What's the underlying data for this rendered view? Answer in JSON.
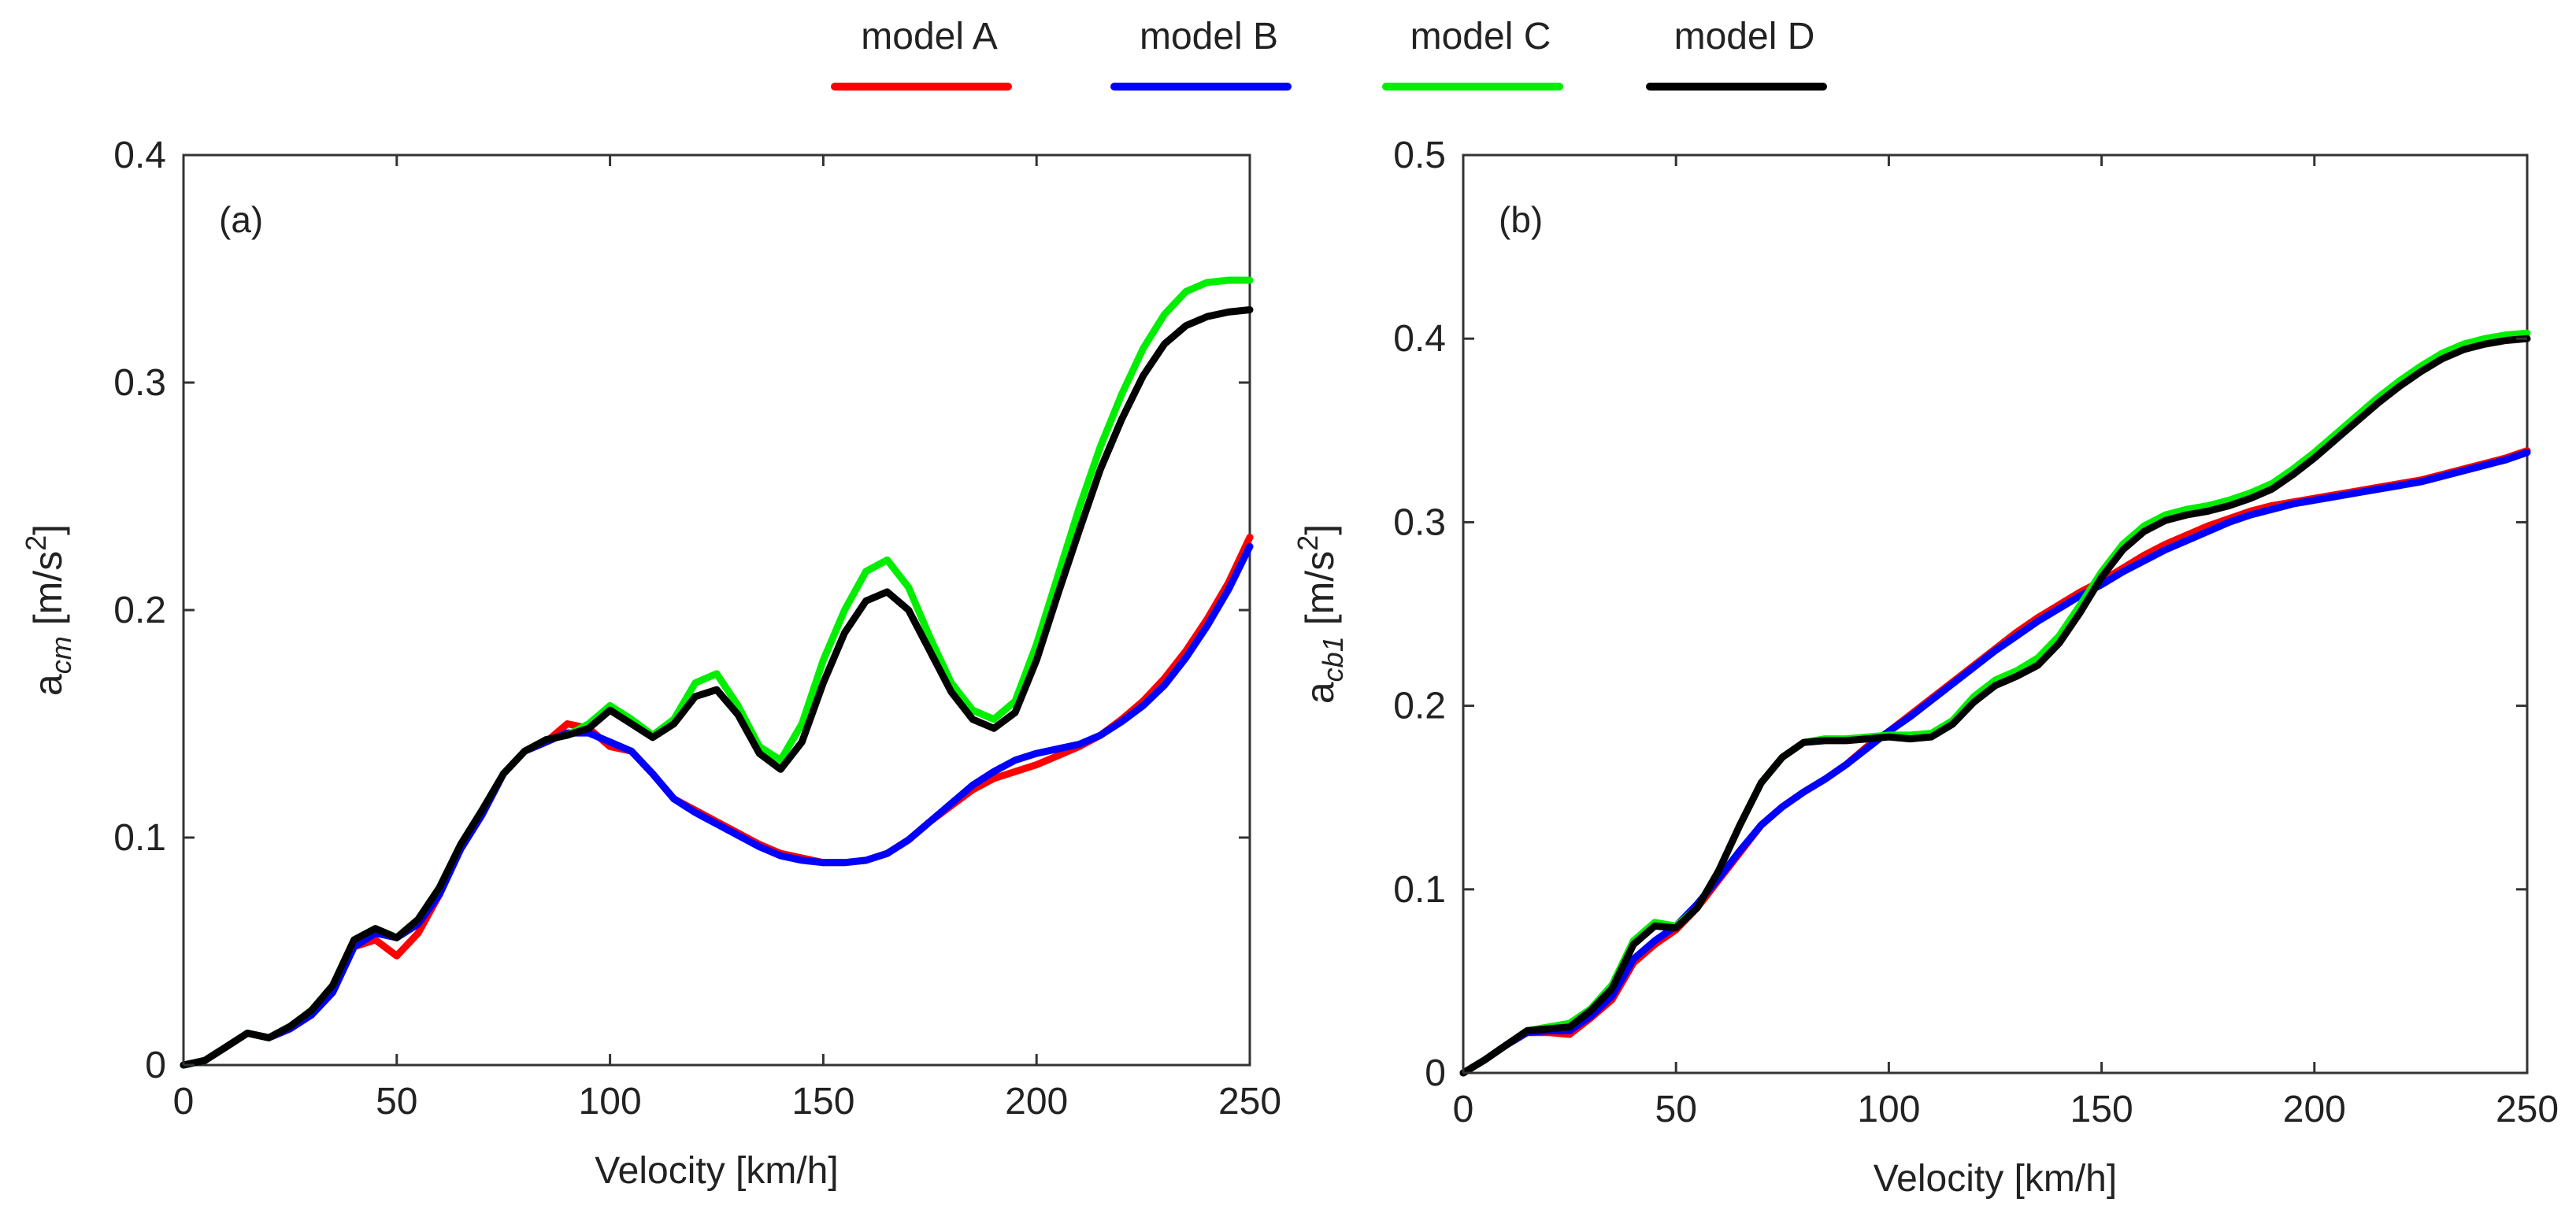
{
  "legend": [
    {
      "label": "model A",
      "color": "#ff0000"
    },
    {
      "label": "model B",
      "color": "#0000ff"
    },
    {
      "label": "model C",
      "color": "#00ee00"
    },
    {
      "label": "model D",
      "color": "#000000"
    }
  ],
  "chart_data": [
    {
      "type": "line",
      "panel_label": "(a)",
      "xlabel": "Velocity [km/h]",
      "ylabel_base": "a",
      "ylabel_sub": "cm",
      "ylabel_unit": "[m/s",
      "ylabel_sup": "2",
      "ylabel_close": "]",
      "xlim": [
        0,
        250
      ],
      "ylim": [
        0,
        0.4
      ],
      "xticks": [
        0,
        50,
        100,
        150,
        200,
        250
      ],
      "xtick_labels": [
        "0",
        "50",
        "100",
        "150",
        "200",
        "250"
      ],
      "yticks": [
        0,
        0.1,
        0.2,
        0.3,
        0.4
      ],
      "ytick_labels": [
        "0",
        "0.1",
        "0.2",
        "0.3",
        "0.4"
      ],
      "grid": false,
      "series": [
        {
          "name": "model A",
          "color": "#ff0000",
          "x": [
            0,
            5,
            10,
            15,
            20,
            25,
            30,
            35,
            40,
            45,
            50,
            55,
            60,
            65,
            70,
            75,
            80,
            85,
            90,
            95,
            100,
            105,
            110,
            115,
            120,
            125,
            130,
            135,
            140,
            145,
            150,
            155,
            160,
            165,
            170,
            175,
            180,
            185,
            190,
            195,
            200,
            205,
            210,
            215,
            220,
            225,
            230,
            235,
            240,
            245,
            250
          ],
          "y": [
            0,
            0.002,
            0.008,
            0.014,
            0.012,
            0.016,
            0.022,
            0.032,
            0.052,
            0.055,
            0.048,
            0.058,
            0.075,
            0.095,
            0.11,
            0.128,
            0.138,
            0.142,
            0.15,
            0.148,
            0.14,
            0.138,
            0.128,
            0.117,
            0.112,
            0.107,
            0.102,
            0.097,
            0.093,
            0.091,
            0.089,
            0.089,
            0.09,
            0.093,
            0.099,
            0.107,
            0.114,
            0.121,
            0.126,
            0.129,
            0.132,
            0.136,
            0.14,
            0.145,
            0.152,
            0.16,
            0.17,
            0.182,
            0.196,
            0.212,
            0.232
          ]
        },
        {
          "name": "model B",
          "color": "#0000ff",
          "x": [
            0,
            5,
            10,
            15,
            20,
            25,
            30,
            35,
            40,
            45,
            50,
            55,
            60,
            65,
            70,
            75,
            80,
            85,
            90,
            95,
            100,
            105,
            110,
            115,
            120,
            125,
            130,
            135,
            140,
            145,
            150,
            155,
            160,
            165,
            170,
            175,
            180,
            185,
            190,
            195,
            200,
            205,
            210,
            215,
            220,
            225,
            230,
            235,
            240,
            245,
            250
          ],
          "y": [
            0,
            0.002,
            0.008,
            0.014,
            0.012,
            0.016,
            0.022,
            0.032,
            0.052,
            0.058,
            0.056,
            0.062,
            0.075,
            0.095,
            0.11,
            0.128,
            0.138,
            0.142,
            0.146,
            0.146,
            0.142,
            0.138,
            0.128,
            0.117,
            0.111,
            0.106,
            0.101,
            0.096,
            0.092,
            0.09,
            0.089,
            0.089,
            0.09,
            0.093,
            0.099,
            0.107,
            0.115,
            0.123,
            0.129,
            0.134,
            0.137,
            0.139,
            0.141,
            0.145,
            0.151,
            0.158,
            0.167,
            0.179,
            0.193,
            0.209,
            0.228
          ]
        },
        {
          "name": "model C",
          "color": "#00ee00",
          "x": [
            0,
            5,
            10,
            15,
            20,
            25,
            30,
            35,
            40,
            45,
            50,
            55,
            60,
            65,
            70,
            75,
            80,
            85,
            90,
            95,
            100,
            105,
            110,
            115,
            120,
            125,
            130,
            135,
            140,
            145,
            150,
            155,
            160,
            165,
            170,
            175,
            180,
            185,
            190,
            195,
            200,
            205,
            210,
            215,
            220,
            225,
            230,
            235,
            240,
            245,
            250
          ],
          "y": [
            0,
            0.002,
            0.008,
            0.014,
            0.012,
            0.017,
            0.024,
            0.035,
            0.055,
            0.06,
            0.056,
            0.064,
            0.078,
            0.097,
            0.112,
            0.128,
            0.138,
            0.143,
            0.145,
            0.15,
            0.158,
            0.152,
            0.145,
            0.152,
            0.168,
            0.172,
            0.158,
            0.14,
            0.134,
            0.15,
            0.178,
            0.2,
            0.217,
            0.222,
            0.21,
            0.188,
            0.168,
            0.156,
            0.152,
            0.16,
            0.185,
            0.215,
            0.245,
            0.272,
            0.295,
            0.315,
            0.33,
            0.34,
            0.344,
            0.345,
            0.345
          ]
        },
        {
          "name": "model D",
          "color": "#000000",
          "x": [
            0,
            5,
            10,
            15,
            20,
            25,
            30,
            35,
            40,
            45,
            50,
            55,
            60,
            65,
            70,
            75,
            80,
            85,
            90,
            95,
            100,
            105,
            110,
            115,
            120,
            125,
            130,
            135,
            140,
            145,
            150,
            155,
            160,
            165,
            170,
            175,
            180,
            185,
            190,
            195,
            200,
            205,
            210,
            215,
            220,
            225,
            230,
            235,
            240,
            245,
            250
          ],
          "y": [
            0,
            0.002,
            0.008,
            0.014,
            0.012,
            0.017,
            0.024,
            0.035,
            0.055,
            0.06,
            0.056,
            0.064,
            0.078,
            0.097,
            0.112,
            0.128,
            0.138,
            0.143,
            0.145,
            0.148,
            0.156,
            0.15,
            0.144,
            0.15,
            0.162,
            0.165,
            0.154,
            0.137,
            0.13,
            0.142,
            0.168,
            0.19,
            0.204,
            0.208,
            0.2,
            0.182,
            0.164,
            0.152,
            0.148,
            0.155,
            0.178,
            0.207,
            0.235,
            0.262,
            0.284,
            0.303,
            0.317,
            0.325,
            0.329,
            0.331,
            0.332
          ]
        }
      ]
    },
    {
      "type": "line",
      "panel_label": "(b)",
      "xlabel": "Velocity [km/h]",
      "ylabel_base": "a",
      "ylabel_sub": "cb1",
      "ylabel_unit": "[m/s",
      "ylabel_sup": "2",
      "ylabel_close": "]",
      "xlim": [
        0,
        250
      ],
      "ylim": [
        0,
        0.5
      ],
      "xticks": [
        0,
        50,
        100,
        150,
        200,
        250
      ],
      "xtick_labels": [
        "0",
        "50",
        "100",
        "150",
        "200",
        "250"
      ],
      "yticks": [
        0,
        0.1,
        0.2,
        0.3,
        0.4,
        0.5
      ],
      "ytick_labels": [
        "0",
        "0.1",
        "0.2",
        "0.3",
        "0.4",
        "0.5"
      ],
      "grid": false,
      "series": [
        {
          "name": "model A",
          "color": "#ff0000",
          "x": [
            0,
            5,
            10,
            15,
            20,
            25,
            30,
            35,
            40,
            45,
            50,
            55,
            60,
            65,
            70,
            75,
            80,
            85,
            90,
            95,
            100,
            105,
            110,
            115,
            120,
            125,
            130,
            135,
            140,
            145,
            150,
            155,
            160,
            165,
            170,
            175,
            180,
            185,
            190,
            195,
            200,
            205,
            210,
            215,
            220,
            225,
            230,
            235,
            240,
            245,
            250
          ],
          "y": [
            0,
            0.007,
            0.015,
            0.022,
            0.022,
            0.021,
            0.03,
            0.04,
            0.06,
            0.07,
            0.078,
            0.09,
            0.105,
            0.12,
            0.135,
            0.145,
            0.153,
            0.16,
            0.168,
            0.178,
            0.186,
            0.195,
            0.204,
            0.213,
            0.222,
            0.231,
            0.24,
            0.248,
            0.255,
            0.262,
            0.268,
            0.275,
            0.282,
            0.288,
            0.293,
            0.298,
            0.302,
            0.306,
            0.309,
            0.311,
            0.313,
            0.315,
            0.317,
            0.319,
            0.321,
            0.323,
            0.326,
            0.329,
            0.332,
            0.335,
            0.339
          ]
        },
        {
          "name": "model B",
          "color": "#0000ff",
          "x": [
            0,
            5,
            10,
            15,
            20,
            25,
            30,
            35,
            40,
            45,
            50,
            55,
            60,
            65,
            70,
            75,
            80,
            85,
            90,
            95,
            100,
            105,
            110,
            115,
            120,
            125,
            130,
            135,
            140,
            145,
            150,
            155,
            160,
            165,
            170,
            175,
            180,
            185,
            190,
            195,
            200,
            205,
            210,
            215,
            220,
            225,
            230,
            235,
            240,
            245,
            250
          ],
          "y": [
            0,
            0.007,
            0.015,
            0.022,
            0.023,
            0.023,
            0.031,
            0.042,
            0.062,
            0.072,
            0.08,
            0.092,
            0.106,
            0.121,
            0.135,
            0.145,
            0.153,
            0.16,
            0.168,
            0.177,
            0.186,
            0.194,
            0.203,
            0.212,
            0.221,
            0.23,
            0.238,
            0.246,
            0.253,
            0.26,
            0.266,
            0.273,
            0.279,
            0.285,
            0.29,
            0.295,
            0.3,
            0.304,
            0.307,
            0.31,
            0.312,
            0.314,
            0.316,
            0.318,
            0.32,
            0.322,
            0.325,
            0.328,
            0.331,
            0.334,
            0.338
          ]
        },
        {
          "name": "model C",
          "color": "#00ee00",
          "x": [
            0,
            5,
            10,
            15,
            20,
            25,
            30,
            35,
            40,
            45,
            50,
            55,
            60,
            65,
            70,
            75,
            80,
            85,
            90,
            95,
            100,
            105,
            110,
            115,
            120,
            125,
            130,
            135,
            140,
            145,
            150,
            155,
            160,
            165,
            170,
            175,
            180,
            185,
            190,
            195,
            200,
            205,
            210,
            215,
            220,
            225,
            230,
            235,
            240,
            245,
            250
          ],
          "y": [
            0,
            0.007,
            0.015,
            0.023,
            0.025,
            0.027,
            0.035,
            0.048,
            0.072,
            0.082,
            0.08,
            0.09,
            0.11,
            0.135,
            0.158,
            0.172,
            0.18,
            0.182,
            0.182,
            0.183,
            0.184,
            0.184,
            0.185,
            0.192,
            0.205,
            0.214,
            0.219,
            0.226,
            0.238,
            0.255,
            0.273,
            0.288,
            0.298,
            0.304,
            0.307,
            0.309,
            0.312,
            0.316,
            0.321,
            0.329,
            0.338,
            0.348,
            0.358,
            0.368,
            0.377,
            0.385,
            0.392,
            0.397,
            0.4,
            0.402,
            0.403
          ]
        },
        {
          "name": "model D",
          "color": "#000000",
          "x": [
            0,
            5,
            10,
            15,
            20,
            25,
            30,
            35,
            40,
            45,
            50,
            55,
            60,
            65,
            70,
            75,
            80,
            85,
            90,
            95,
            100,
            105,
            110,
            115,
            120,
            125,
            130,
            135,
            140,
            145,
            150,
            155,
            160,
            165,
            170,
            175,
            180,
            185,
            190,
            195,
            200,
            205,
            210,
            215,
            220,
            225,
            230,
            235,
            240,
            245,
            250
          ],
          "y": [
            0,
            0.007,
            0.015,
            0.023,
            0.024,
            0.025,
            0.034,
            0.046,
            0.07,
            0.08,
            0.079,
            0.09,
            0.11,
            0.135,
            0.158,
            0.172,
            0.18,
            0.181,
            0.181,
            0.182,
            0.183,
            0.182,
            0.183,
            0.19,
            0.202,
            0.211,
            0.216,
            0.222,
            0.234,
            0.251,
            0.27,
            0.285,
            0.295,
            0.301,
            0.304,
            0.306,
            0.309,
            0.313,
            0.318,
            0.326,
            0.335,
            0.345,
            0.355,
            0.365,
            0.374,
            0.382,
            0.389,
            0.394,
            0.397,
            0.399,
            0.4
          ]
        }
      ]
    }
  ]
}
